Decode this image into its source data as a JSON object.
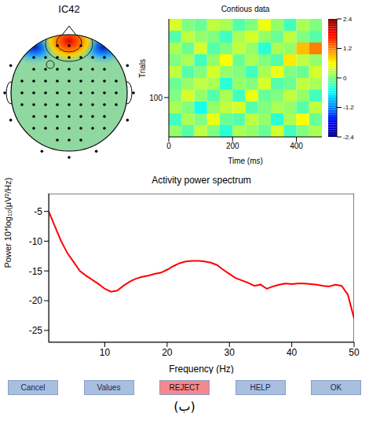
{
  "chart_data": [
    {
      "type": "topomap",
      "title": "IC42"
    },
    {
      "type": "heatmap",
      "title": "Contious data",
      "x_label": "Time (ms)",
      "y_label": "Trials",
      "xlim": [
        0,
        480
      ],
      "xticks": [
        0,
        200,
        400
      ],
      "ylim": [
        0,
        300
      ],
      "yticks": [
        100
      ],
      "x_edges": [
        0,
        40,
        80,
        120,
        160,
        200,
        240,
        280,
        320,
        360,
        400,
        440,
        480
      ],
      "y_edges": [
        0,
        30,
        60,
        90,
        120,
        150,
        180,
        210,
        240,
        270,
        300
      ],
      "cells": [
        [
          0.1,
          -0.2,
          0.3,
          0.0,
          -0.4,
          0.2,
          0.1,
          -0.1,
          0.4,
          -0.3,
          0.0,
          0.2
        ],
        [
          -0.3,
          0.2,
          0.0,
          0.5,
          -0.1,
          -0.2,
          0.3,
          0.1,
          -0.4,
          0.2,
          0.6,
          -0.1
        ],
        [
          0.2,
          0.0,
          -0.5,
          0.1,
          0.3,
          0.4,
          -0.2,
          0.0,
          0.2,
          0.1,
          -0.2,
          0.3
        ],
        [
          0.0,
          0.4,
          0.1,
          -0.2,
          0.2,
          -0.3,
          0.5,
          -0.1,
          0.0,
          0.3,
          0.1,
          -0.3
        ],
        [
          -0.1,
          0.1,
          0.3,
          0.2,
          -0.4,
          0.1,
          0.0,
          0.4,
          -0.2,
          -0.1,
          0.3,
          0.2
        ],
        [
          0.3,
          -0.2,
          0.0,
          0.4,
          0.1,
          0.0,
          -0.3,
          0.2,
          0.5,
          0.0,
          -0.1,
          0.4
        ],
        [
          0.0,
          0.2,
          -0.3,
          0.1,
          0.6,
          -0.1,
          0.2,
          0.0,
          -0.2,
          0.7,
          0.3,
          0.1
        ],
        [
          0.2,
          -0.1,
          0.4,
          -0.2,
          0.0,
          0.3,
          0.1,
          -0.4,
          0.2,
          0.1,
          0.9,
          1.2
        ],
        [
          -0.2,
          0.3,
          0.1,
          0.0,
          -0.3,
          0.2,
          0.4,
          0.1,
          -0.1,
          0.3,
          0.0,
          -0.2
        ],
        [
          0.4,
          0.0,
          -0.1,
          0.3,
          0.2,
          -0.2,
          0.0,
          0.5,
          0.1,
          -0.3,
          0.2,
          0.0
        ]
      ],
      "color_range": [
        -2.4,
        2.4
      ],
      "color_ticks": [
        2.4,
        1.2,
        0,
        -1.2,
        -2.4
      ]
    },
    {
      "type": "line",
      "title": "Activity power spectrum",
      "x_label": "Frequency (Hz)",
      "y_label": "Power 10*log₁₀(μV²/Hz)",
      "x": [
        1,
        2,
        3,
        4,
        5,
        6,
        7,
        8,
        9,
        10,
        11,
        12,
        13,
        14,
        15,
        16,
        17,
        18,
        19,
        20,
        21,
        22,
        23,
        24,
        25,
        26,
        27,
        28,
        29,
        30,
        31,
        32,
        33,
        34,
        35,
        36,
        37,
        38,
        39,
        40,
        41,
        42,
        43,
        44,
        45,
        46,
        47,
        48,
        49,
        50
      ],
      "values": [
        -5,
        -7.5,
        -10,
        -12,
        -13.5,
        -15,
        -15.8,
        -16.5,
        -17.2,
        -18,
        -18.5,
        -18.3,
        -17.5,
        -16.8,
        -16.3,
        -16,
        -15.8,
        -15.5,
        -15.3,
        -14.8,
        -14.2,
        -13.7,
        -13.4,
        -13.3,
        -13.3,
        -13.4,
        -13.6,
        -14,
        -14.8,
        -15.5,
        -16.2,
        -16.6,
        -17,
        -17.5,
        -17.3,
        -18,
        -17.6,
        -17.3,
        -17.1,
        -17.2,
        -17.1,
        -17.1,
        -17.2,
        -17.3,
        -17.5,
        -17.6,
        -17.3,
        -17.5,
        -19,
        -23
      ],
      "color": "#ff0000",
      "xlim": [
        1,
        50
      ],
      "xticks": [
        10,
        20,
        30,
        40,
        50
      ],
      "ylim": [
        -27,
        -2
      ],
      "yticks": [
        -25,
        -20,
        -15,
        -10,
        -5
      ],
      "grid": false
    }
  ],
  "buttons": [
    "Cancel",
    "Values",
    "REJECT",
    "HELP",
    "OK"
  ],
  "caption": "(ب)"
}
